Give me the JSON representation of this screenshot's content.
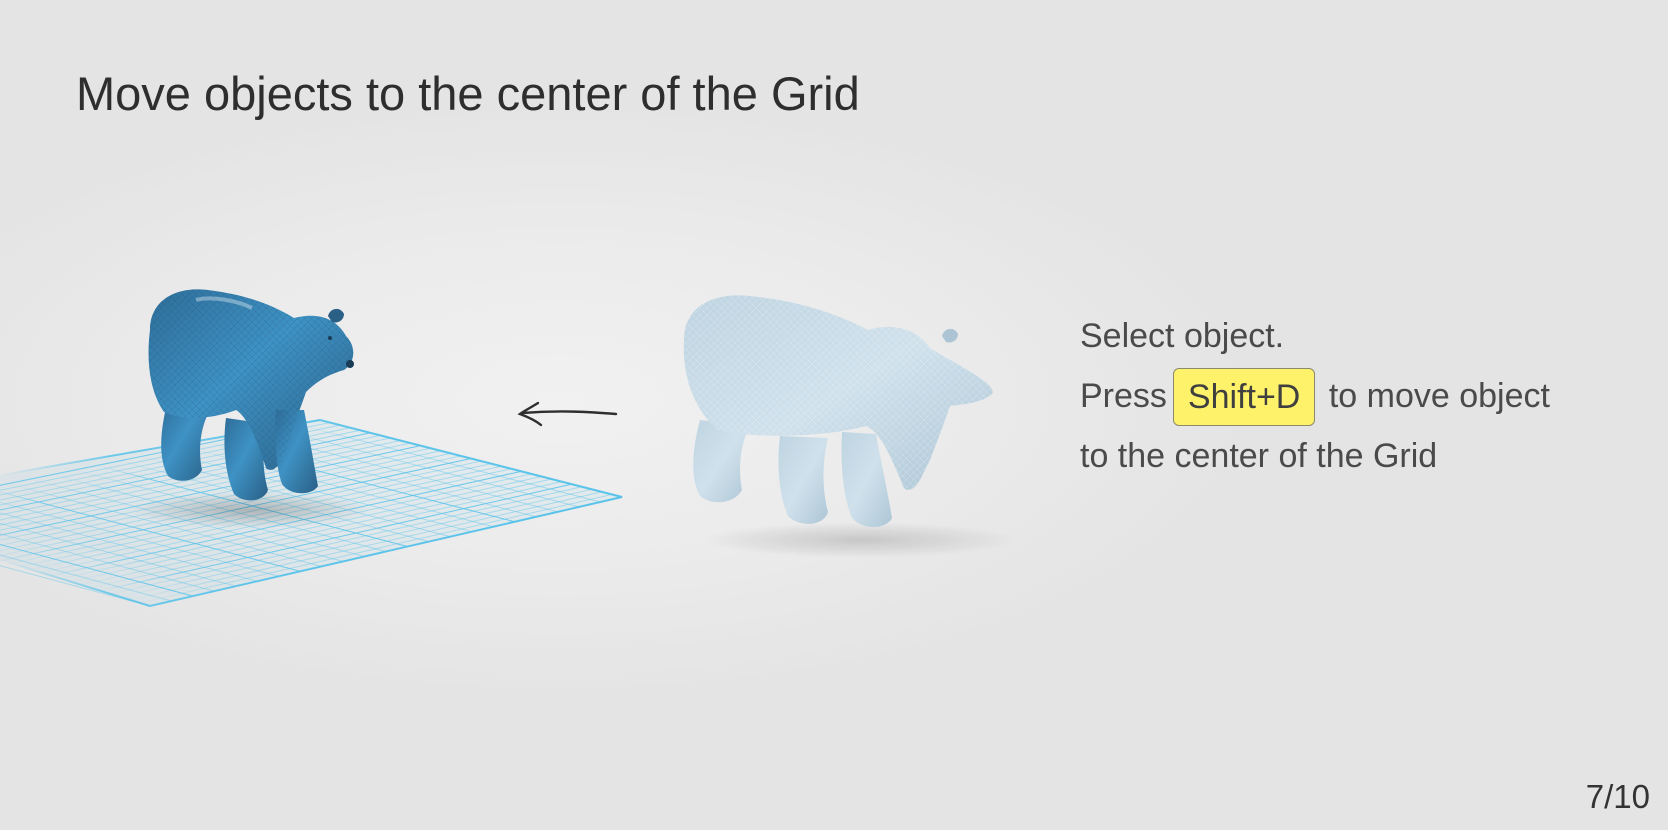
{
  "slide": {
    "title": "Move objects to the center of the Grid",
    "page_indicator": "7/10"
  },
  "instructions": {
    "line1": "Select object.",
    "line2_prefix": "Press",
    "shortcut_key": "Shift+D",
    "line2_suffix": "to move object",
    "line3": "to the center of the Grid"
  },
  "illustration": {
    "object_selected_color": "#3a8fc2",
    "object_ghost_color": "#c6dbe8",
    "grid_color": "#59c3ea",
    "arrow_direction": "left"
  }
}
